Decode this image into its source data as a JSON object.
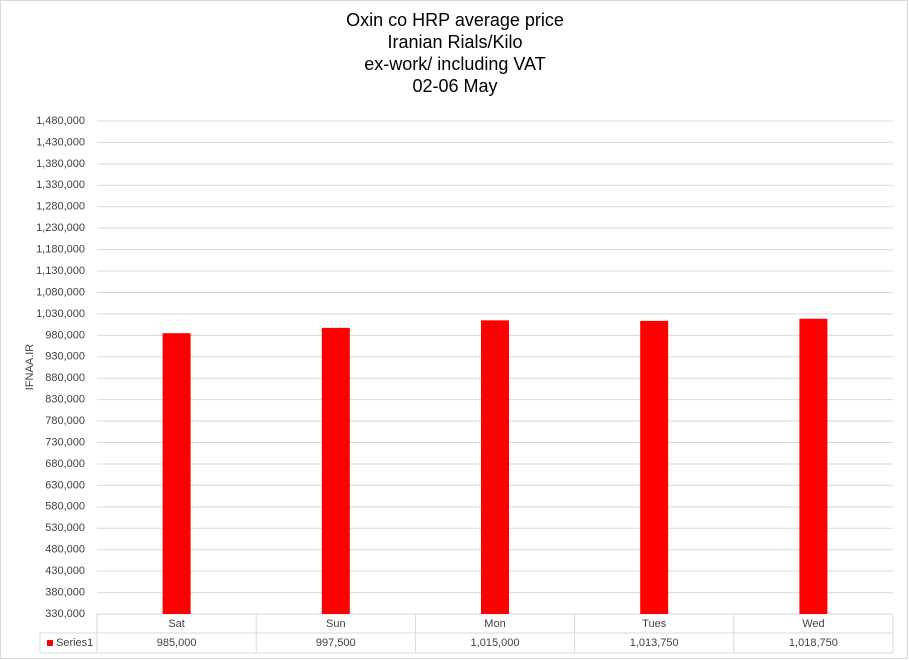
{
  "chart_data": {
    "type": "bar",
    "title": [
      "Oxin co HRP average price",
      "Iranian Rials/Kilo",
      "ex-work/ including VAT",
      "02-06 May"
    ],
    "y_label": "IFNAA.IR",
    "categories": [
      "Sat",
      "Sun",
      "Mon",
      "Tues",
      "Wed"
    ],
    "series": [
      {
        "name": "Series1",
        "color": "#ff0000",
        "values": [
          985000,
          997500,
          1015000,
          1013750,
          1018750
        ],
        "value_labels": [
          "985,000",
          "997,500",
          "1,015,000",
          "1,013,750",
          "1,018,750"
        ]
      }
    ],
    "ylim": [
      330000,
      1480000
    ],
    "yticks": [
      {
        "value": 330000,
        "label": "330,000"
      },
      {
        "value": 380000,
        "label": "380,000"
      },
      {
        "value": 430000,
        "label": "430,000"
      },
      {
        "value": 480000,
        "label": "480,000"
      },
      {
        "value": 530000,
        "label": "530,000"
      },
      {
        "value": 580000,
        "label": "580,000"
      },
      {
        "value": 630000,
        "label": "630,000"
      },
      {
        "value": 680000,
        "label": "680,000"
      },
      {
        "value": 730000,
        "label": "730,000"
      },
      {
        "value": 780000,
        "label": "780,000"
      },
      {
        "value": 830000,
        "label": "830,000"
      },
      {
        "value": 880000,
        "label": "880,000"
      },
      {
        "value": 930000,
        "label": "930,000"
      },
      {
        "value": 980000,
        "label": "980,000"
      },
      {
        "value": 1030000,
        "label": "1,030,000"
      },
      {
        "value": 1080000,
        "label": "1,080,000"
      },
      {
        "value": 1130000,
        "label": "1,130,000"
      },
      {
        "value": 1180000,
        "label": "1,180,000"
      },
      {
        "value": 1230000,
        "label": "1,230,000"
      },
      {
        "value": 1280000,
        "label": "1,280,000"
      },
      {
        "value": 1330000,
        "label": "1,330,000"
      },
      {
        "value": 1380000,
        "label": "1,380,000"
      },
      {
        "value": 1430000,
        "label": "1,430,000"
      },
      {
        "value": 1480000,
        "label": "1,480,000"
      }
    ],
    "grid": true
  }
}
